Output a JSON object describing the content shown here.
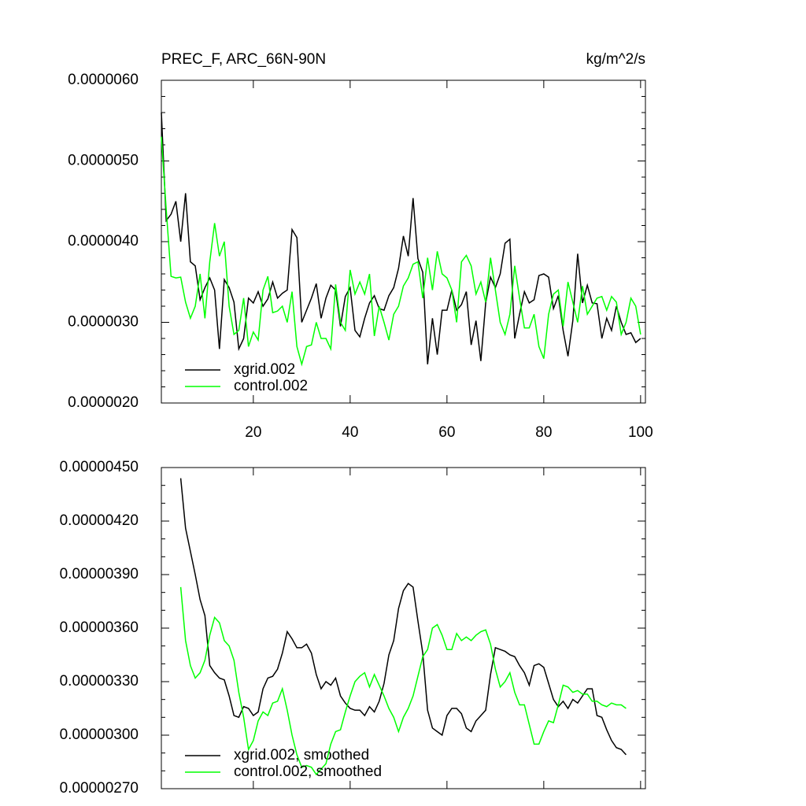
{
  "chart_data": [
    {
      "type": "line",
      "title": "PREC_F, ARC_66N-90N",
      "units": "kg/m^2/s",
      "legend": "lower left",
      "x": [
        1,
        2,
        3,
        4,
        5,
        6,
        7,
        8,
        9,
        10,
        11,
        12,
        13,
        14,
        15,
        16,
        17,
        18,
        19,
        20,
        21,
        22,
        23,
        24,
        25,
        26,
        27,
        28,
        29,
        30,
        31,
        32,
        33,
        34,
        35,
        36,
        37,
        38,
        39,
        40,
        41,
        42,
        43,
        44,
        45,
        46,
        47,
        48,
        49,
        50,
        51,
        52,
        53,
        54,
        55,
        56,
        57,
        58,
        59,
        60,
        61,
        62,
        63,
        64,
        65,
        66,
        67,
        68,
        69,
        70,
        71,
        72,
        73,
        74,
        75,
        76,
        77,
        78,
        79,
        80,
        81,
        82,
        83,
        84,
        85,
        86,
        87,
        88,
        89,
        90,
        91,
        92,
        93,
        94,
        95,
        96,
        97,
        98,
        99,
        100
      ],
      "xlim": [
        1,
        101
      ],
      "xticks": [
        20,
        40,
        60,
        80,
        100
      ],
      "ylim": [
        2e-06,
        6e-06
      ],
      "yticks": [
        {
          "value": 2e-06,
          "label": "0.0000020"
        },
        {
          "value": 3e-06,
          "label": "0.0000030"
        },
        {
          "value": 4e-06,
          "label": "0.0000040"
        },
        {
          "value": 5e-06,
          "label": "0.0000050"
        },
        {
          "value": 6e-06,
          "label": "0.0000060"
        }
      ],
      "series": [
        {
          "name": "xgrid.002",
          "color": "#000000",
          "values": [
            5.6e-06,
            4.26e-06,
            4.34e-06,
            4.5e-06,
            4e-06,
            4.6e-06,
            3.75e-06,
            3.7e-06,
            3.28e-06,
            3.43e-06,
            3.55e-06,
            3.4e-06,
            2.67e-06,
            3.53e-06,
            3.43e-06,
            3.25e-06,
            2.67e-06,
            2.8e-06,
            3.3e-06,
            3.24e-06,
            3.38e-06,
            3.2e-06,
            3.29e-06,
            3.5e-06,
            3.3e-06,
            3.36e-06,
            3.4e-06,
            4.15e-06,
            4.05e-06,
            3e-06,
            3.15e-06,
            3.3e-06,
            3.48e-06,
            3.05e-06,
            3.3e-06,
            3.46e-06,
            3.4e-06,
            2.95e-06,
            3.32e-06,
            3.43e-06,
            2.9e-06,
            2.82e-06,
            3.05e-06,
            3.24e-06,
            3.33e-06,
            3.17e-06,
            3.15e-06,
            3.33e-06,
            3.43e-06,
            3.67e-06,
            4.07e-06,
            3.82e-06,
            4.54e-06,
            3.79e-06,
            3.62e-06,
            2.48e-06,
            3.05e-06,
            2.6e-06,
            3.15e-06,
            3.15e-06,
            3.4e-06,
            3.15e-06,
            3.22e-06,
            3.38e-06,
            2.72e-06,
            3.02e-06,
            2.52e-06,
            3.24e-06,
            3.56e-06,
            3.43e-06,
            3.6e-06,
            3.98e-06,
            4.03e-06,
            2.8e-06,
            3.1e-06,
            3.38e-06,
            3.24e-06,
            3.28e-06,
            3.58e-06,
            3.6e-06,
            3.56e-06,
            3.17e-06,
            3.33e-06,
            2.9e-06,
            2.58e-06,
            3.02e-06,
            3.85e-06,
            3.24e-06,
            3.46e-06,
            3.24e-06,
            3.23e-06,
            2.8e-06,
            3.05e-06,
            2.9e-06,
            3.2e-06,
            3e-06,
            2.85e-06,
            2.87e-06,
            2.75e-06,
            2.8e-06
          ]
        },
        {
          "name": "control.002",
          "color": "#00ff00",
          "values": [
            5.3e-06,
            4.4e-06,
            3.57e-06,
            3.55e-06,
            3.56e-06,
            3.25e-06,
            3.05e-06,
            3.2e-06,
            3.6e-06,
            3.05e-06,
            3.75e-06,
            4.23e-06,
            3.82e-06,
            4e-06,
            3.2e-06,
            2.85e-06,
            2.9e-06,
            3.3e-06,
            2.7e-06,
            2.88e-06,
            2.78e-06,
            3.4e-06,
            3.57e-06,
            3.12e-06,
            3.14e-06,
            3.2e-06,
            3e-06,
            3.38e-06,
            2.7e-06,
            2.48e-06,
            2.7e-06,
            2.72e-06,
            3e-06,
            2.8e-06,
            2.8e-06,
            2.67e-06,
            3.47e-06,
            3e-06,
            2.9e-06,
            3.65e-06,
            3.35e-06,
            3.5e-06,
            3.35e-06,
            3.6e-06,
            2.83e-06,
            3.2e-06,
            3e-06,
            2.78e-06,
            3.1e-06,
            3.2e-06,
            3.45e-06,
            3.55e-06,
            3.72e-06,
            3.75e-06,
            3.3e-06,
            3.8e-06,
            3.4e-06,
            3.88e-06,
            3.6e-06,
            3.55e-06,
            3.4e-06,
            3e-06,
            3.75e-06,
            3.83e-06,
            3.7e-06,
            3.35e-06,
            3.5e-06,
            3.25e-06,
            3.8e-06,
            3.4e-06,
            3e-06,
            2.85e-06,
            3.1e-06,
            3.7e-06,
            3.3e-06,
            2.93e-06,
            2.93e-06,
            3.1e-06,
            2.7e-06,
            2.55e-06,
            3.1e-06,
            3.35e-06,
            3.4e-06,
            2.95e-06,
            3.5e-06,
            3.25e-06,
            3e-06,
            3.45e-06,
            3.1e-06,
            3.2e-06,
            3.3e-06,
            3.32e-06,
            3.15e-06,
            3.32e-06,
            3.25e-06,
            2.85e-06,
            3e-06,
            3.3e-06,
            3.2e-06,
            2.85e-06
          ]
        }
      ]
    },
    {
      "type": "line",
      "legend": "lower left",
      "x": [
        5,
        6,
        7,
        8,
        9,
        10,
        11,
        12,
        13,
        14,
        15,
        16,
        17,
        18,
        19,
        20,
        21,
        22,
        23,
        24,
        25,
        26,
        27,
        28,
        29,
        30,
        31,
        32,
        33,
        34,
        35,
        36,
        37,
        38,
        39,
        40,
        41,
        42,
        43,
        44,
        45,
        46,
        47,
        48,
        49,
        50,
        51,
        52,
        53,
        54,
        55,
        56,
        57,
        58,
        59,
        60,
        61,
        62,
        63,
        64,
        65,
        66,
        67,
        68,
        69,
        70,
        71,
        72,
        73,
        74,
        75,
        76,
        77,
        78,
        79,
        80,
        81,
        82,
        83,
        84,
        85,
        86,
        87,
        88,
        89,
        90,
        91,
        92,
        93,
        94,
        95,
        96,
        97
      ],
      "xlim": [
        1,
        101
      ],
      "xticks": [
        20,
        40,
        60,
        80,
        100
      ],
      "ylim": [
        2.7e-06,
        4.5e-06
      ],
      "yticks": [
        {
          "value": 2.7e-06,
          "label": "0.00000270"
        },
        {
          "value": 3e-06,
          "label": "0.00000300"
        },
        {
          "value": 3.3e-06,
          "label": "0.00000330"
        },
        {
          "value": 3.6e-06,
          "label": "0.00000360"
        },
        {
          "value": 3.9e-06,
          "label": "0.00000390"
        },
        {
          "value": 4.2e-06,
          "label": "0.00000420"
        },
        {
          "value": 4.5e-06,
          "label": "0.00000450"
        }
      ],
      "series": [
        {
          "name": "xgrid.002, smoothed",
          "color": "#000000",
          "values": [
            4.44e-06,
            4.16e-06,
            4.03e-06,
            3.9e-06,
            3.76e-06,
            3.67e-06,
            3.39e-06,
            3.35e-06,
            3.32e-06,
            3.31e-06,
            3.22e-06,
            3.11e-06,
            3.1e-06,
            3.16e-06,
            3.15e-06,
            3.11e-06,
            3.13e-06,
            3.26e-06,
            3.32e-06,
            3.33e-06,
            3.37e-06,
            3.46e-06,
            3.58e-06,
            3.54e-06,
            3.49e-06,
            3.49e-06,
            3.51e-06,
            3.46e-06,
            3.34e-06,
            3.26e-06,
            3.3e-06,
            3.28e-06,
            3.32e-06,
            3.22e-06,
            3.18e-06,
            3.15e-06,
            3.14e-06,
            3.14e-06,
            3.11e-06,
            3.16e-06,
            3.13e-06,
            3.19e-06,
            3.29e-06,
            3.45e-06,
            3.53e-06,
            3.71e-06,
            3.81e-06,
            3.85e-06,
            3.83e-06,
            3.64e-06,
            3.46e-06,
            3.14e-06,
            3.04e-06,
            3.02e-06,
            3e-06,
            3.11e-06,
            3.15e-06,
            3.15e-06,
            3.12e-06,
            3.04e-06,
            3.02e-06,
            3.08e-06,
            3.11e-06,
            3.14e-06,
            3.34e-06,
            3.49e-06,
            3.48e-06,
            3.47e-06,
            3.45e-06,
            3.44e-06,
            3.39e-06,
            3.35e-06,
            3.28e-06,
            3.39e-06,
            3.4e-06,
            3.38e-06,
            3.29e-06,
            3.2e-06,
            3.16e-06,
            3.19e-06,
            3.15e-06,
            3.2e-06,
            3.18e-06,
            3.22e-06,
            3.26e-06,
            3.26e-06,
            3.11e-06,
            3.1e-06,
            3.03e-06,
            2.97e-06,
            2.93e-06,
            2.92e-06,
            2.89e-06
          ]
        },
        {
          "name": "control.002, smoothed",
          "color": "#00ff00",
          "values": [
            3.83e-06,
            3.53e-06,
            3.39e-06,
            3.32e-06,
            3.35e-06,
            3.42e-06,
            3.56e-06,
            3.66e-06,
            3.63e-06,
            3.53e-06,
            3.5e-06,
            3.42e-06,
            3.24e-06,
            3.1e-06,
            2.92e-06,
            2.97e-06,
            3.08e-06,
            3.13e-06,
            3.11e-06,
            3.18e-06,
            3.19e-06,
            3.26e-06,
            3.14e-06,
            3e-06,
            2.89e-06,
            2.82e-06,
            2.83e-06,
            2.82e-06,
            2.78e-06,
            2.81e-06,
            2.84e-06,
            2.95e-06,
            3.02e-06,
            3.03e-06,
            3.13e-06,
            3.22e-06,
            3.3e-06,
            3.33e-06,
            3.35e-06,
            3.27e-06,
            3.34e-06,
            3.28e-06,
            3.22e-06,
            3.15e-06,
            3.1e-06,
            3.02e-06,
            3.1e-06,
            3.15e-06,
            3.22e-06,
            3.33e-06,
            3.44e-06,
            3.48e-06,
            3.6e-06,
            3.62e-06,
            3.56e-06,
            3.48e-06,
            3.48e-06,
            3.57e-06,
            3.53e-06,
            3.55e-06,
            3.53e-06,
            3.56e-06,
            3.58e-06,
            3.59e-06,
            3.51e-06,
            3.37e-06,
            3.27e-06,
            3.3e-06,
            3.35e-06,
            3.24e-06,
            3.17e-06,
            3.17e-06,
            3.06e-06,
            2.95e-06,
            2.95e-06,
            3.02e-06,
            3.08e-06,
            3.07e-06,
            3.17e-06,
            3.28e-06,
            3.27e-06,
            3.24e-06,
            3.25e-06,
            3.23e-06,
            3.23e-06,
            3.19e-06,
            3.19e-06,
            3.17e-06,
            3.16e-06,
            3.18e-06,
            3.17e-06,
            3.17e-06,
            3.15e-06
          ]
        }
      ]
    }
  ]
}
